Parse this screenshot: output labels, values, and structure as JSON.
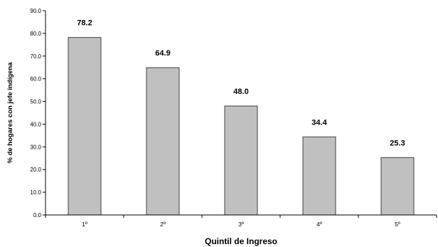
{
  "chart_data": {
    "type": "bar",
    "categories": [
      "1º",
      "2º",
      "3º",
      "4º",
      "5º"
    ],
    "values": [
      78.2,
      64.9,
      48.0,
      34.4,
      25.3
    ],
    "data_labels": [
      "78.2",
      "64.9",
      "48.0",
      "34.4",
      "25.3"
    ],
    "xlabel": "Quintil de Ingreso",
    "ylabel": "% de hogares con jefe indígena",
    "ylim": [
      0,
      90
    ],
    "yticks": [
      "0.0",
      "10.0",
      "20.0",
      "30.0",
      "40.0",
      "50.0",
      "60.0",
      "70.0",
      "80.0",
      "90.0"
    ],
    "grid": false,
    "legend": "none",
    "bar_color": "#c0c0c0",
    "bar_edge_color": "#404040"
  }
}
